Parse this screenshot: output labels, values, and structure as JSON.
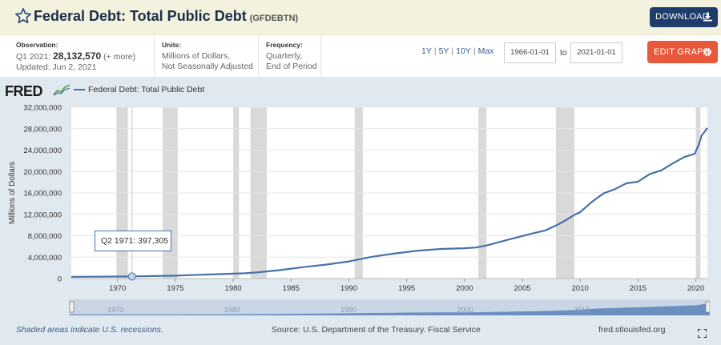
{
  "header": {
    "title": "Federal Debt: Total Public Debt",
    "series_id": "(GFDEBTN)",
    "download_label": "DOWNLOAD"
  },
  "meta": {
    "observation_label": "Observation:",
    "observation_period": "Q1 2021:",
    "observation_value": "28,132,570",
    "observation_more": "(+ more)",
    "updated": "Updated: Jun 2, 2021",
    "units_label": "Units:",
    "units_line1": "Millions of Dollars,",
    "units_line2": "Not Seasonally Adjusted",
    "frequency_label": "Frequency:",
    "frequency_line1": "Quarterly,",
    "frequency_line2": "End of Period",
    "ranges": [
      "1Y",
      "5Y",
      "10Y",
      "Max"
    ],
    "start_date": "1966-01-01",
    "to_label": "to",
    "end_date": "2021-01-01",
    "edit_label": "EDIT GRAPH"
  },
  "logo": "FRED",
  "legend_label": "Federal Debt: Total Public Debt",
  "tooltip": {
    "label": "Q2 1971:",
    "value": "397,305"
  },
  "footer": {
    "recession_note": "Shaded areas indicate U.S. recessions.",
    "source": "Source: U.S. Department of the Treasury. Fiscal Service",
    "site": "fred.stlouisfed.org"
  },
  "colors": {
    "line": "#4572a7",
    "panel": "#e1e9f0",
    "recession": "#d9d9d9",
    "header_bg": "#f2f2df",
    "download_btn": "#1e3d6b",
    "edit_btn": "#e8583a"
  },
  "icons": [
    "star-icon",
    "download-icon",
    "gear-icon",
    "fullscreen-icon"
  ],
  "chart_data": {
    "type": "line",
    "ylabel": "Millions of Dollars",
    "xlim": [
      1966,
      2021
    ],
    "ylim": [
      0,
      32000000
    ],
    "yticks": [
      0,
      4000000,
      8000000,
      12000000,
      16000000,
      20000000,
      24000000,
      28000000,
      32000000
    ],
    "ytick_labels": [
      "0",
      "4,000,000",
      "8,000,000",
      "12,000,000",
      "16,000,000",
      "20,000,000",
      "24,000,000",
      "28,000,000",
      "32,000,000"
    ],
    "xticks": [
      1970,
      1975,
      1980,
      1985,
      1990,
      1995,
      2000,
      2005,
      2010,
      2015,
      2020
    ],
    "navigator_ticks": [
      1970,
      1980,
      1990,
      2000,
      2010
    ],
    "grid": true,
    "recessions": [
      [
        1969.9,
        1970.9
      ],
      [
        1973.9,
        1975.2
      ],
      [
        1980.0,
        1980.5
      ],
      [
        1981.5,
        1982.9
      ],
      [
        1990.5,
        1991.2
      ],
      [
        2001.2,
        2001.9
      ],
      [
        2007.9,
        2009.5
      ],
      [
        2020.0,
        2020.4
      ]
    ],
    "series": [
      {
        "x": [
          1966,
          1968,
          1970,
          1971.25,
          1973,
          1975,
          1977,
          1979,
          1981,
          1982,
          1984,
          1986,
          1988,
          1990,
          1992,
          1994,
          1996,
          1998,
          2000,
          2001,
          2002,
          2004,
          2006,
          2007,
          2008,
          2008.75,
          2009.5,
          2010,
          2011,
          2012,
          2013,
          2014,
          2015,
          2016,
          2017,
          2018,
          2019,
          2019.9,
          2020.25,
          2020.5,
          2021
        ],
        "y": [
          320000,
          350000,
          370000,
          397305,
          460000,
          540000,
          700000,
          830000,
          990000,
          1140000,
          1570000,
          2120000,
          2600000,
          3200000,
          4060000,
          4690000,
          5220000,
          5530000,
          5670000,
          5800000,
          6230000,
          7380000,
          8500000,
          9000000,
          10000000,
          10900000,
          11900000,
          12400000,
          14300000,
          15900000,
          16700000,
          17800000,
          18100000,
          19500000,
          20200000,
          21500000,
          22700000,
          23300000,
          25000000,
          26700000,
          28132570
        ]
      }
    ]
  }
}
